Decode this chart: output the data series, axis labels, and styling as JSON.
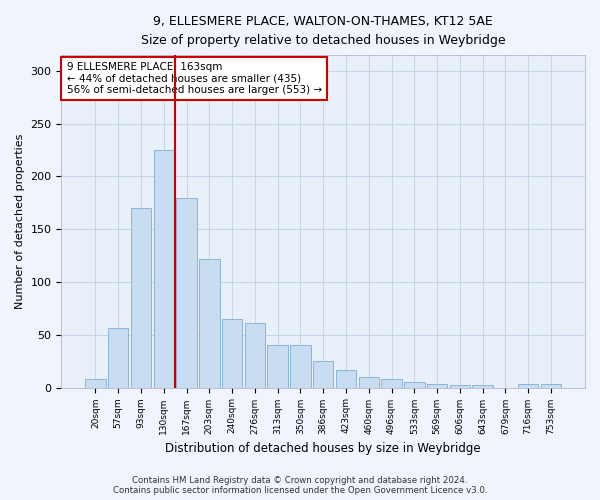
{
  "title_line1": "9, ELLESMERE PLACE, WALTON-ON-THAMES, KT12 5AE",
  "title_line2": "Size of property relative to detached houses in Weybridge",
  "xlabel": "Distribution of detached houses by size in Weybridge",
  "ylabel": "Number of detached properties",
  "bar_color": "#c9ddf2",
  "bar_edge_color": "#7fafd4",
  "background_color": "#e8f0fa",
  "grid_color": "#c8d4e8",
  "vline_color": "#cc0000",
  "vline_x": 3.5,
  "annotation_text": "9 ELLESMERE PLACE: 163sqm\n← 44% of detached houses are smaller (435)\n56% of semi-detached houses are larger (553) →",
  "annotation_box_color": "#ffffff",
  "annotation_box_edge": "#cc0000",
  "categories": [
    "20sqm",
    "57sqm",
    "93sqm",
    "130sqm",
    "167sqm",
    "203sqm",
    "240sqm",
    "276sqm",
    "313sqm",
    "350sqm",
    "386sqm",
    "423sqm",
    "460sqm",
    "496sqm",
    "533sqm",
    "569sqm",
    "606sqm",
    "643sqm",
    "679sqm",
    "716sqm",
    "753sqm"
  ],
  "bar_heights": [
    8,
    56,
    170,
    225,
    180,
    122,
    65,
    61,
    40,
    40,
    25,
    17,
    10,
    8,
    5,
    3,
    2,
    2,
    0,
    3,
    3
  ],
  "ylim": [
    0,
    315
  ],
  "yticks": [
    0,
    50,
    100,
    150,
    200,
    250,
    300
  ],
  "footer_line1": "Contains HM Land Registry data © Crown copyright and database right 2024.",
  "footer_line2": "Contains public sector information licensed under the Open Government Licence v3.0.",
  "fig_bg": "#f0f4fc"
}
